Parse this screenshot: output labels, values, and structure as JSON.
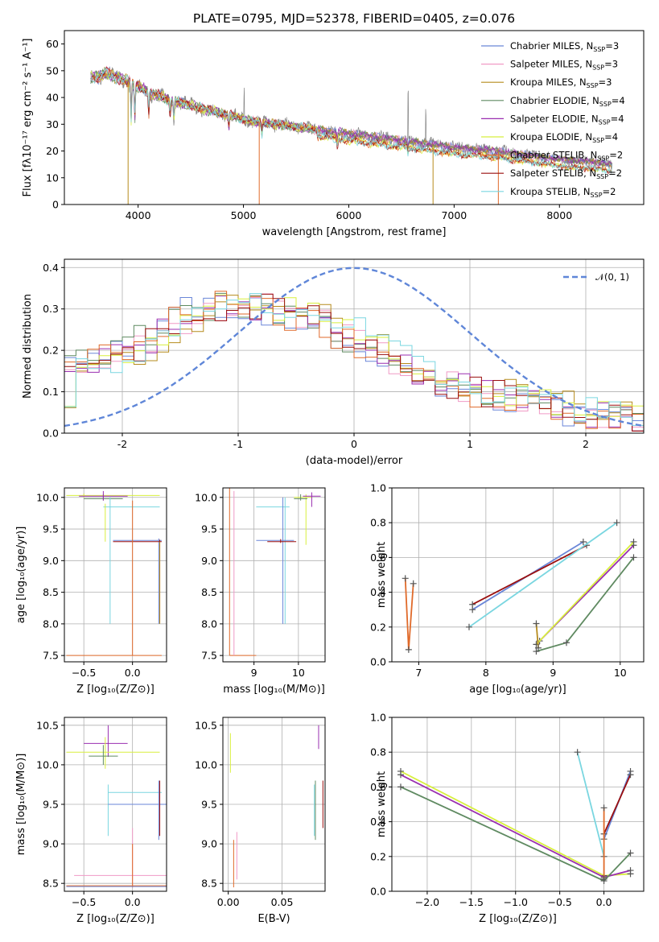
{
  "colors": {
    "Chabrier MILES": "#6a86d8",
    "Salpeter MILES": "#f09ac6",
    "Kroupa MILES": "#b68b1d",
    "Chabrier ELODIE": "#5f8a61",
    "Salpeter ELODIE": "#9a2fb0",
    "Kroupa ELODIE": "#d8ef3e",
    "Chabrier STELIB": "#e06a2a",
    "Salpeter STELIB": "#9a0f0f",
    "Kroupa STELIB": "#7ad6e0",
    "gaussian": "#5f86d8"
  },
  "chart_data": [
    {
      "id": "spectrum",
      "type": "line",
      "title": "PLATE=0795, MJD=52378, FIBERID=0405, z=0.076",
      "xlabel": "wavelength [Angstrom, rest frame]",
      "ylabel": "Flux [fλ10⁻¹⁷ erg cm⁻² s⁻¹ A⁻¹]",
      "xlim": [
        3300,
        8800
      ],
      "ylim": [
        0,
        65
      ],
      "xticks": [
        4000,
        5000,
        6000,
        7000,
        8000
      ],
      "yticks": [
        0,
        10,
        20,
        30,
        40,
        50,
        60
      ],
      "grid": false,
      "legend_placement": "top-right",
      "series": [
        {
          "name": "Chabrier MILES, N",
          "sub": "SSP",
          "suffix": "=3",
          "color": "#6a86d8"
        },
        {
          "name": "Salpeter MILES, N",
          "sub": "SSP",
          "suffix": "=3",
          "color": "#f09ac6"
        },
        {
          "name": "Kroupa MILES, N",
          "sub": "SSP",
          "suffix": "=3",
          "color": "#b68b1d"
        },
        {
          "name": "Chabrier ELODIE, N",
          "sub": "SSP",
          "suffix": "=4",
          "color": "#5f8a61"
        },
        {
          "name": "Salpeter ELODIE, N",
          "sub": "SSP",
          "suffix": "=4",
          "color": "#9a2fb0"
        },
        {
          "name": "Kroupa ELODIE, N",
          "sub": "SSP",
          "suffix": "=4",
          "color": "#d8ef3e"
        },
        {
          "name": "Chabrier STELIB, N",
          "sub": "SSP",
          "suffix": "=2",
          "color": "#e06a2a"
        },
        {
          "name": "Salpeter STELIB, N",
          "sub": "SSP",
          "suffix": "=2",
          "color": "#9a0f0f"
        },
        {
          "name": "Kroupa STELIB, N",
          "sub": "SSP",
          "suffix": "=2",
          "color": "#7ad6e0"
        }
      ],
      "continuum": {
        "x": [
          3550,
          3700,
          3900,
          4100,
          4300,
          4500,
          4700,
          4900,
          5100,
          5300,
          5500,
          5700,
          5900,
          6100,
          6300,
          6500,
          6700,
          6900,
          7100,
          7300,
          7500,
          7700,
          7900,
          8100,
          8300,
          8500
        ],
        "y": [
          47,
          49,
          46,
          42,
          39,
          37,
          35,
          33,
          31,
          30,
          29,
          28,
          27,
          26,
          25,
          24,
          23,
          22,
          21,
          20.5,
          19.5,
          18.5,
          17.5,
          16.5,
          16,
          15
        ]
      }
    },
    {
      "id": "residuals",
      "type": "line",
      "xlabel": "(data-model)/error",
      "ylabel": "Normed distribution",
      "xlim": [
        -2.5,
        2.5
      ],
      "ylim": [
        0,
        0.42
      ],
      "xticks": [
        -2,
        -1,
        0,
        1,
        2
      ],
      "yticks": [
        0.0,
        0.1,
        0.2,
        0.3,
        0.4
      ],
      "grid": true,
      "legend": "𝒩(0, 1)",
      "legend_placement": "top-right",
      "gaussian": {
        "mean": 0,
        "sigma": 1
      },
      "histogram_envelope": {
        "x": [
          -2.5,
          -2.2,
          -1.9,
          -1.6,
          -1.3,
          -1.0,
          -0.7,
          -0.4,
          -0.1,
          0.2,
          0.5,
          0.8,
          1.1,
          1.4,
          1.7,
          2.0,
          2.3,
          2.5
        ],
        "y": [
          0.15,
          0.17,
          0.2,
          0.25,
          0.3,
          0.31,
          0.3,
          0.28,
          0.25,
          0.2,
          0.15,
          0.12,
          0.1,
          0.09,
          0.07,
          0.05,
          0.04,
          0.035
        ]
      }
    },
    {
      "id": "age-vs-Z",
      "type": "scatter",
      "xlabel": "Z [log₁₀(Z/Z⊙)]",
      "ylabel": "age  [log₁₀(age/yr)]",
      "xlim": [
        -0.7,
        0.35
      ],
      "ylim": [
        7.4,
        10.15
      ],
      "xticks": [
        -0.5,
        0.0
      ],
      "xtick_labels": [
        "−0.5",
        "0.0"
      ],
      "yticks": [
        7.5,
        8.0,
        8.5,
        9.0,
        9.5,
        10.0
      ],
      "grid": true
    },
    {
      "id": "age-vs-mass",
      "type": "scatter",
      "xlabel": "mass [log₁₀(M/M⊙)]",
      "ylabel": "",
      "xlim": [
        8.3,
        10.6
      ],
      "ylim": [
        7.4,
        10.15
      ],
      "xticks": [
        9,
        10
      ],
      "yticks": [
        7.5,
        8.0,
        8.5,
        9.0,
        9.5,
        10.0
      ],
      "grid": true
    },
    {
      "id": "weight-vs-age",
      "type": "line",
      "xlabel": "age  [log₁₀(age/yr)]",
      "ylabel": "mass weight",
      "xlim": [
        6.6,
        10.35
      ],
      "ylim": [
        0,
        1
      ],
      "xticks": [
        7,
        8,
        9,
        10
      ],
      "yticks": [
        0.0,
        0.2,
        0.4,
        0.6,
        0.8,
        1.0
      ],
      "grid": true,
      "series": [
        {
          "name": "Chabrier MILES",
          "x": [
            7.8,
            9.45
          ],
          "y": [
            0.3,
            0.69
          ]
        },
        {
          "name": "Salpeter STELIB",
          "x": [
            7.8,
            9.5
          ],
          "y": [
            0.33,
            0.67
          ]
        },
        {
          "name": "Kroupa STELIB",
          "x": [
            7.75,
            9.95
          ],
          "y": [
            0.2,
            0.8
          ]
        },
        {
          "name": "Chabrier STELIB",
          "x": [
            6.8,
            6.85,
            6.92
          ],
          "y": [
            0.48,
            0.07,
            0.45
          ]
        },
        {
          "name": "Chabrier ELODIE",
          "x": [
            8.75,
            9.2,
            10.2
          ],
          "y": [
            0.06,
            0.11,
            0.6
          ]
        },
        {
          "name": "Salpeter ELODIE",
          "x": [
            8.8,
            10.2
          ],
          "y": [
            0.12,
            0.67
          ]
        },
        {
          "name": "Kroupa ELODIE",
          "x": [
            8.75,
            10.2
          ],
          "y": [
            0.1,
            0.69
          ]
        },
        {
          "name": "Kroupa MILES",
          "x": [
            8.75,
            8.78
          ],
          "y": [
            0.22,
            0.08
          ]
        }
      ]
    },
    {
      "id": "mass-vs-Z",
      "type": "scatter",
      "xlabel": "Z [log₁₀(Z/Z⊙)]",
      "ylabel": "mass [log₁₀(M/M⊙)]",
      "xlim": [
        -0.7,
        0.35
      ],
      "ylim": [
        8.4,
        10.6
      ],
      "xticks": [
        -0.5,
        0.0
      ],
      "xtick_labels": [
        "−0.5",
        "0.0"
      ],
      "yticks": [
        8.5,
        9.0,
        9.5,
        10.0,
        10.5
      ],
      "grid": true
    },
    {
      "id": "mass-vs-ebv",
      "type": "scatter",
      "xlabel": "E(B-V)",
      "ylabel": "",
      "xlim": [
        -0.005,
        0.09
      ],
      "ylim": [
        8.4,
        10.6
      ],
      "xticks": [
        0.0,
        0.05
      ],
      "xtick_labels": [
        "0.00",
        "0.05"
      ],
      "yticks": [
        8.5,
        9.0,
        9.5,
        10.0,
        10.5
      ],
      "grid": true
    },
    {
      "id": "weight-vs-Z",
      "type": "line",
      "xlabel": "Z [log₁₀(Z/Z⊙)]",
      "ylabel": "mass weight",
      "xlim": [
        -2.4,
        0.45
      ],
      "ylim": [
        0,
        1
      ],
      "xticks": [
        -2.0,
        -1.5,
        -1.0,
        -0.5,
        0.0
      ],
      "xtick_labels": [
        "−2.0",
        "−1.5",
        "−1.0",
        "−0.5",
        "0.0"
      ],
      "yticks": [
        0.0,
        0.2,
        0.4,
        0.6,
        0.8,
        1.0
      ],
      "grid": true,
      "series": [
        {
          "name": "Kroupa ELODIE",
          "x": [
            -2.3,
            0.0,
            0.3
          ],
          "y": [
            0.69,
            0.09,
            0.1
          ]
        },
        {
          "name": "Salpeter ELODIE",
          "x": [
            -2.3,
            0.0,
            0.3
          ],
          "y": [
            0.67,
            0.08,
            0.12
          ]
        },
        {
          "name": "Chabrier ELODIE",
          "x": [
            -2.3,
            0.0,
            0.3
          ],
          "y": [
            0.6,
            0.06,
            0.22
          ]
        },
        {
          "name": "Chabrier MILES",
          "x": [
            0.0,
            0.3
          ],
          "y": [
            0.3,
            0.69
          ]
        },
        {
          "name": "Salpeter STELIB",
          "x": [
            0.0,
            0.3
          ],
          "y": [
            0.33,
            0.67
          ]
        },
        {
          "name": "Kroupa STELIB",
          "x": [
            -0.3,
            0.0
          ],
          "y": [
            0.8,
            0.2
          ]
        },
        {
          "name": "Chabrier STELIB",
          "x": [
            0.0,
            0.0
          ],
          "y": [
            0.48,
            0.07
          ]
        }
      ]
    }
  ]
}
